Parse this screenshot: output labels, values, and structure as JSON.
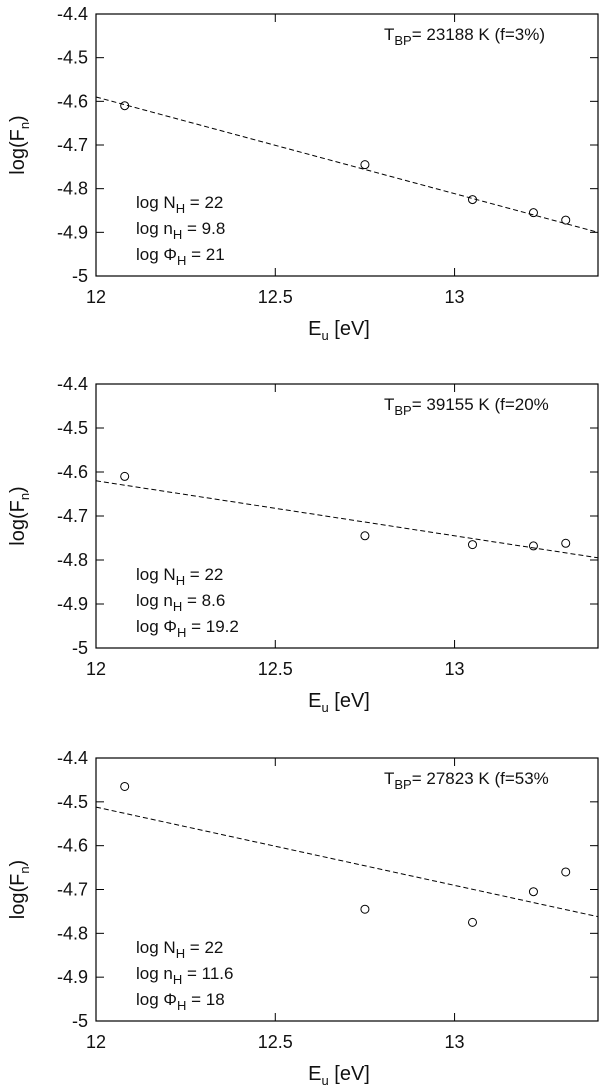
{
  "chart_data": [
    {
      "type": "scatter",
      "x": [
        12.08,
        12.75,
        13.05,
        13.22,
        13.31
      ],
      "y": [
        -4.61,
        -4.745,
        -4.825,
        -4.855,
        -4.872
      ],
      "fit_line": {
        "x": [
          12.0,
          13.4
        ],
        "y": [
          -4.59,
          -4.9
        ]
      },
      "xlim": [
        12.0,
        13.4
      ],
      "ylim": [
        -5.0,
        -4.4
      ],
      "xticks": [
        "12",
        "12.5",
        "13"
      ],
      "xtick_values": [
        12,
        12.5,
        13
      ],
      "yticks": [
        "-4.4",
        "-4.5",
        "-4.6",
        "-4.7",
        "-4.8",
        "-4.9",
        "-5"
      ],
      "ytick_values": [
        -4.4,
        -4.5,
        -4.6,
        -4.7,
        -4.8,
        -4.9,
        -5.0
      ],
      "xlabel": {
        "main": "E",
        "sub": "u",
        "rest": " [eV]"
      },
      "ylabel": {
        "main": "log(F",
        "sub": "n",
        "rest": ")"
      },
      "temperature": {
        "main": "T",
        "sub": "BP",
        "rest": "= 23188 K (f=3%)"
      },
      "params": [
        {
          "main": "log N",
          "sub": "H",
          "rest": " =  22"
        },
        {
          "main": "log n",
          "sub": "H",
          "rest": " =  9.8"
        },
        {
          "main": "log Φ",
          "sub": "H",
          "rest": " =  21"
        }
      ]
    },
    {
      "type": "scatter",
      "x": [
        12.08,
        12.75,
        13.05,
        13.22,
        13.31
      ],
      "y": [
        -4.61,
        -4.745,
        -4.765,
        -4.768,
        -4.762
      ],
      "fit_line": {
        "x": [
          12.0,
          13.4
        ],
        "y": [
          -4.62,
          -4.795
        ]
      },
      "xlim": [
        12.0,
        13.4
      ],
      "ylim": [
        -5.0,
        -4.4
      ],
      "xticks": [
        "12",
        "12.5",
        "13"
      ],
      "xtick_values": [
        12,
        12.5,
        13
      ],
      "yticks": [
        "-4.4",
        "-4.5",
        "-4.6",
        "-4.7",
        "-4.8",
        "-4.9",
        "-5"
      ],
      "ytick_values": [
        -4.4,
        -4.5,
        -4.6,
        -4.7,
        -4.8,
        -4.9,
        -5.0
      ],
      "xlabel": {
        "main": "E",
        "sub": "u",
        "rest": " [eV]"
      },
      "ylabel": {
        "main": "log(F",
        "sub": "n",
        "rest": ")"
      },
      "temperature": {
        "main": "T",
        "sub": "BP",
        "rest": "= 39155 K (f=20%"
      },
      "params": [
        {
          "main": "log N",
          "sub": "H",
          "rest": " =  22"
        },
        {
          "main": "log n",
          "sub": "H",
          "rest": " =  8.6"
        },
        {
          "main": "log Φ",
          "sub": "H",
          "rest": " =  19.2"
        }
      ]
    },
    {
      "type": "scatter",
      "x": [
        12.08,
        12.75,
        13.05,
        13.22,
        13.31
      ],
      "y": [
        -4.465,
        -4.745,
        -4.775,
        -4.705,
        -4.66
      ],
      "fit_line": {
        "x": [
          12.0,
          13.4
        ],
        "y": [
          -4.512,
          -4.762
        ]
      },
      "xlim": [
        12.0,
        13.4
      ],
      "ylim": [
        -5.0,
        -4.4
      ],
      "xticks": [
        "12",
        "12.5",
        "13"
      ],
      "xtick_values": [
        12,
        12.5,
        13
      ],
      "yticks": [
        "-4.4",
        "-4.5",
        "-4.6",
        "-4.7",
        "-4.8",
        "-4.9",
        "-5"
      ],
      "ytick_values": [
        -4.4,
        -4.5,
        -4.6,
        -4.7,
        -4.8,
        -4.9,
        -5.0
      ],
      "xlabel": {
        "main": "E",
        "sub": "u",
        "rest": " [eV]"
      },
      "ylabel": {
        "main": "log(F",
        "sub": "n",
        "rest": ")"
      },
      "temperature": {
        "main": "T",
        "sub": "BP",
        "rest": "= 27823 K (f=53%"
      },
      "params": [
        {
          "main": "log N",
          "sub": "H",
          "rest": " =  22"
        },
        {
          "main": "log n",
          "sub": "H",
          "rest": " =  11.6"
        },
        {
          "main": "log Φ",
          "sub": "H",
          "rest": " =  18"
        }
      ]
    }
  ]
}
